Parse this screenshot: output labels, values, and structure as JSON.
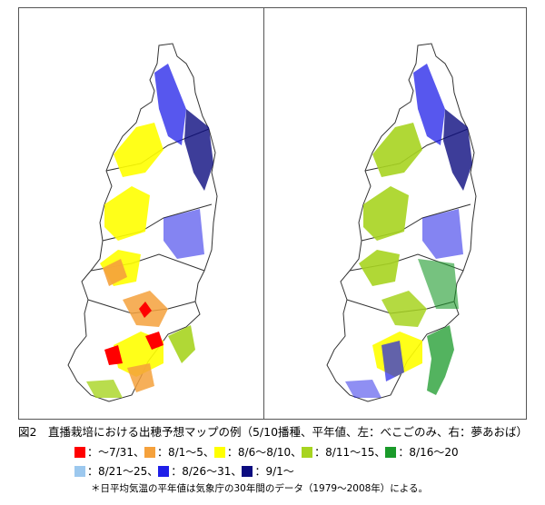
{
  "caption": "図2　直播栽培における出穂予想マップの例（5/10播種、平年値、左：べこごのみ、右：夢あおば）",
  "legend_row1": [
    {
      "label": "：～7/31、",
      "color": "#ff0000",
      "icon": "red-square"
    },
    {
      "label": "：8/1～5、",
      "color": "#f5a13c",
      "icon": "orange-square"
    },
    {
      "label": "：8/6～8/10、",
      "color": "#ffff00",
      "icon": "yellow-square"
    },
    {
      "label": "：8/11～15、",
      "color": "#a7d420",
      "icon": "yellow-green-square"
    },
    {
      "label": "：8/16～20",
      "color": "#1a9a2a",
      "icon": "green-square"
    }
  ],
  "legend_row2": [
    {
      "label": "：8/21～25、",
      "color": "#9cc8ee",
      "icon": "light-blue-square"
    },
    {
      "label": "：8/26～31、",
      "color": "#1f1fe8",
      "icon": "blue-square"
    },
    {
      "label": "：9/1～",
      "color": "#0c0c80",
      "icon": "navy-square"
    }
  ],
  "note": "＊日平均気温の平年値は気象庁の30年間のデータ（1979～2008年）による。"
}
